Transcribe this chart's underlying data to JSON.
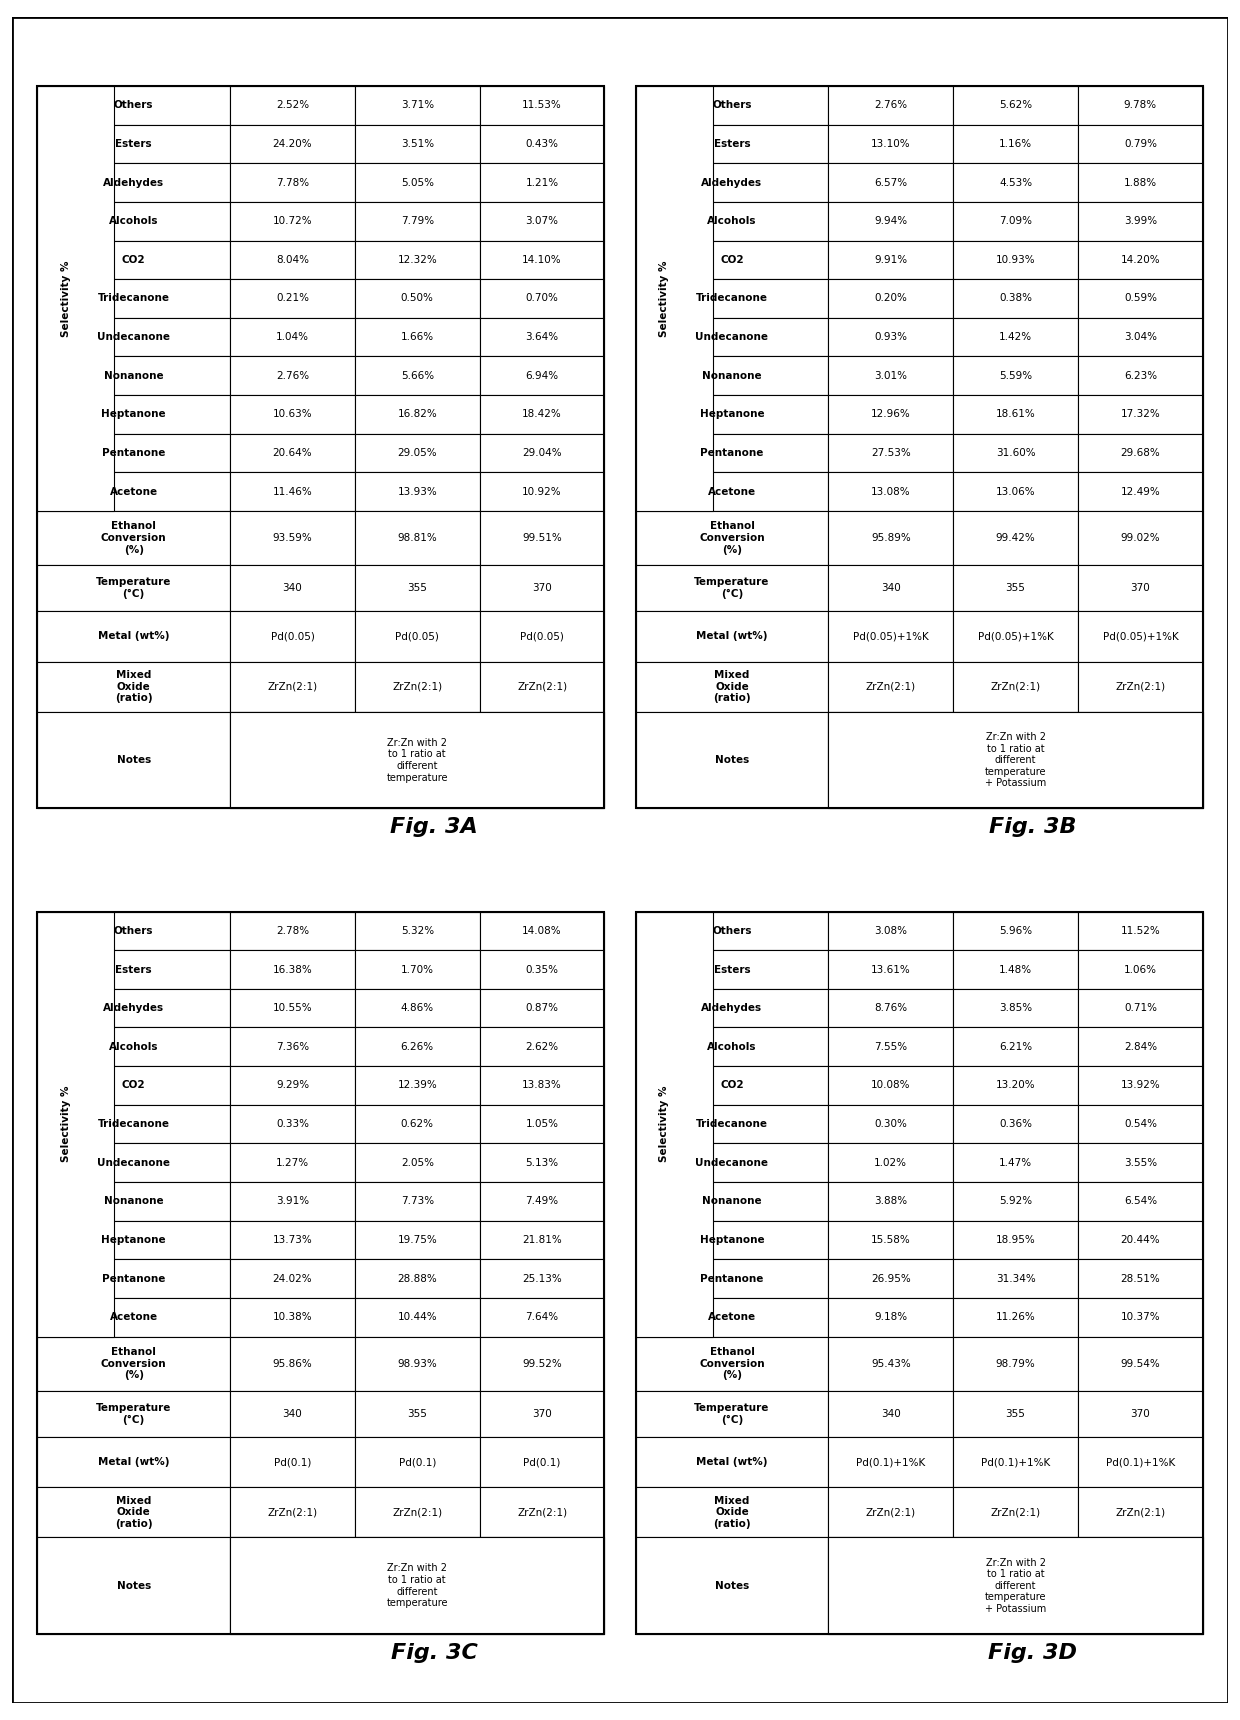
{
  "figures": [
    {
      "label": "Fig. 3A",
      "note": "Zr:Zn with 2\nto 1 ratio at\ndifferent\ntemperature",
      "metal": [
        "Pd(0.05)",
        "Pd(0.05)",
        "Pd(0.05)"
      ],
      "oxide": [
        "ZrZn(2:1)",
        "ZrZn(2:1)",
        "ZrZn(2:1)"
      ],
      "temp": [
        "340",
        "355",
        "370"
      ],
      "conversion": [
        "93.59%",
        "98.81%",
        "99.51%"
      ],
      "acetone": [
        "11.46%",
        "13.93%",
        "10.92%"
      ],
      "pentanone": [
        "20.64%",
        "29.05%",
        "29.04%"
      ],
      "heptanone": [
        "10.63%",
        "16.82%",
        "18.42%"
      ],
      "nonanone": [
        "2.76%",
        "5.66%",
        "6.94%"
      ],
      "undecanone": [
        "1.04%",
        "1.66%",
        "3.64%"
      ],
      "tridecanone": [
        "0.21%",
        "0.50%",
        "0.70%"
      ],
      "co2": [
        "8.04%",
        "12.32%",
        "14.10%"
      ],
      "alcohols": [
        "10.72%",
        "7.79%",
        "3.07%"
      ],
      "aldehydes": [
        "7.78%",
        "5.05%",
        "1.21%"
      ],
      "esters": [
        "24.20%",
        "3.51%",
        "0.43%"
      ],
      "others": [
        "2.52%",
        "3.71%",
        "11.53%"
      ]
    },
    {
      "label": "Fig. 3B",
      "note": "Zr:Zn with 2\nto 1 ratio at\ndifferent\ntemperature\n+ Potassium",
      "metal": [
        "Pd(0.05)+1%K",
        "Pd(0.05)+1%K",
        "Pd(0.05)+1%K"
      ],
      "oxide": [
        "ZrZn(2:1)",
        "ZrZn(2:1)",
        "ZrZn(2:1)"
      ],
      "temp": [
        "340",
        "355",
        "370"
      ],
      "conversion": [
        "95.89%",
        "99.42%",
        "99.02%"
      ],
      "acetone": [
        "13.08%",
        "13.06%",
        "12.49%"
      ],
      "pentanone": [
        "27.53%",
        "31.60%",
        "29.68%"
      ],
      "heptanone": [
        "12.96%",
        "18.61%",
        "17.32%"
      ],
      "nonanone": [
        "3.01%",
        "5.59%",
        "6.23%"
      ],
      "undecanone": [
        "0.93%",
        "1.42%",
        "3.04%"
      ],
      "tridecanone": [
        "0.20%",
        "0.38%",
        "0.59%"
      ],
      "co2": [
        "9.91%",
        "10.93%",
        "14.20%"
      ],
      "alcohols": [
        "9.94%",
        "7.09%",
        "3.99%"
      ],
      "aldehydes": [
        "6.57%",
        "4.53%",
        "1.88%"
      ],
      "esters": [
        "13.10%",
        "1.16%",
        "0.79%"
      ],
      "others": [
        "2.76%",
        "5.62%",
        "9.78%"
      ]
    },
    {
      "label": "Fig. 3C",
      "note": "Zr:Zn with 2\nto 1 ratio at\ndifferent\ntemperature",
      "metal": [
        "Pd(0.1)",
        "Pd(0.1)",
        "Pd(0.1)"
      ],
      "oxide": [
        "ZrZn(2:1)",
        "ZrZn(2:1)",
        "ZrZn(2:1)"
      ],
      "temp": [
        "340",
        "355",
        "370"
      ],
      "conversion": [
        "95.86%",
        "98.93%",
        "99.52%"
      ],
      "acetone": [
        "10.38%",
        "10.44%",
        "7.64%"
      ],
      "pentanone": [
        "24.02%",
        "28.88%",
        "25.13%"
      ],
      "heptanone": [
        "13.73%",
        "19.75%",
        "21.81%"
      ],
      "nonanone": [
        "3.91%",
        "7.73%",
        "7.49%"
      ],
      "undecanone": [
        "1.27%",
        "2.05%",
        "5.13%"
      ],
      "tridecanone": [
        "0.33%",
        "0.62%",
        "1.05%"
      ],
      "co2": [
        "9.29%",
        "12.39%",
        "13.83%"
      ],
      "alcohols": [
        "7.36%",
        "6.26%",
        "2.62%"
      ],
      "aldehydes": [
        "10.55%",
        "4.86%",
        "0.87%"
      ],
      "esters": [
        "16.38%",
        "1.70%",
        "0.35%"
      ],
      "others": [
        "2.78%",
        "5.32%",
        "14.08%"
      ]
    },
    {
      "label": "Fig. 3D",
      "note": "Zr:Zn with 2\nto 1 ratio at\ndifferent\ntemperature\n+ Potassium",
      "metal": [
        "Pd(0.1)+1%K",
        "Pd(0.1)+1%K",
        "Pd(0.1)+1%K"
      ],
      "oxide": [
        "ZrZn(2:1)",
        "ZrZn(2:1)",
        "ZrZn(2:1)"
      ],
      "temp": [
        "340",
        "355",
        "370"
      ],
      "conversion": [
        "95.43%",
        "98.79%",
        "99.54%"
      ],
      "acetone": [
        "9.18%",
        "11.26%",
        "10.37%"
      ],
      "pentanone": [
        "26.95%",
        "31.34%",
        "28.51%"
      ],
      "heptanone": [
        "15.58%",
        "18.95%",
        "20.44%"
      ],
      "nonanone": [
        "3.88%",
        "5.92%",
        "6.54%"
      ],
      "undecanone": [
        "1.02%",
        "1.47%",
        "3.55%"
      ],
      "tridecanone": [
        "0.30%",
        "0.36%",
        "0.54%"
      ],
      "co2": [
        "10.08%",
        "13.20%",
        "13.92%"
      ],
      "alcohols": [
        "7.55%",
        "6.21%",
        "2.84%"
      ],
      "aldehydes": [
        "8.76%",
        "3.85%",
        "0.71%"
      ],
      "esters": [
        "13.61%",
        "1.48%",
        "1.06%"
      ],
      "others": [
        "3.08%",
        "5.96%",
        "11.52%"
      ]
    }
  ]
}
